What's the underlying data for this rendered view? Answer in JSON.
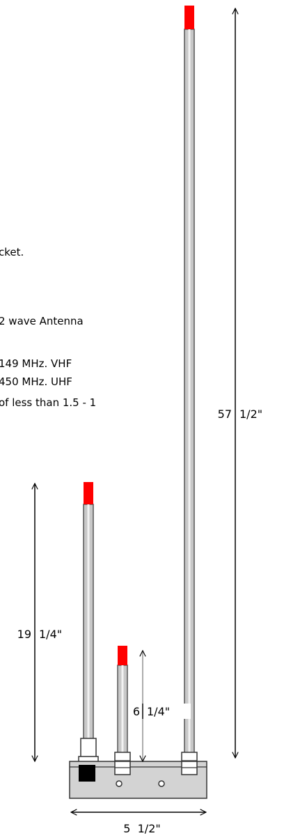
{
  "notes": {
    "line1": "cket.",
    "line2": "2 wave Antenna",
    "line3": "149 MHz. VHF",
    "line4": "450 MHz. UHF",
    "line5": "of less than 1.5 - 1"
  },
  "dimensions": {
    "tall_whole": "57",
    "tall_fraction": "1/2\"",
    "mid_whole": "19",
    "mid_fraction": "1/4\"",
    "short_whole": "6",
    "short_fraction": "1/4\"",
    "base_width": "5  1/2\""
  },
  "colors": {
    "tip": "#ff0000",
    "rod": "#c8c8c8",
    "base": "#d3d3d3",
    "connector": "#000000"
  }
}
